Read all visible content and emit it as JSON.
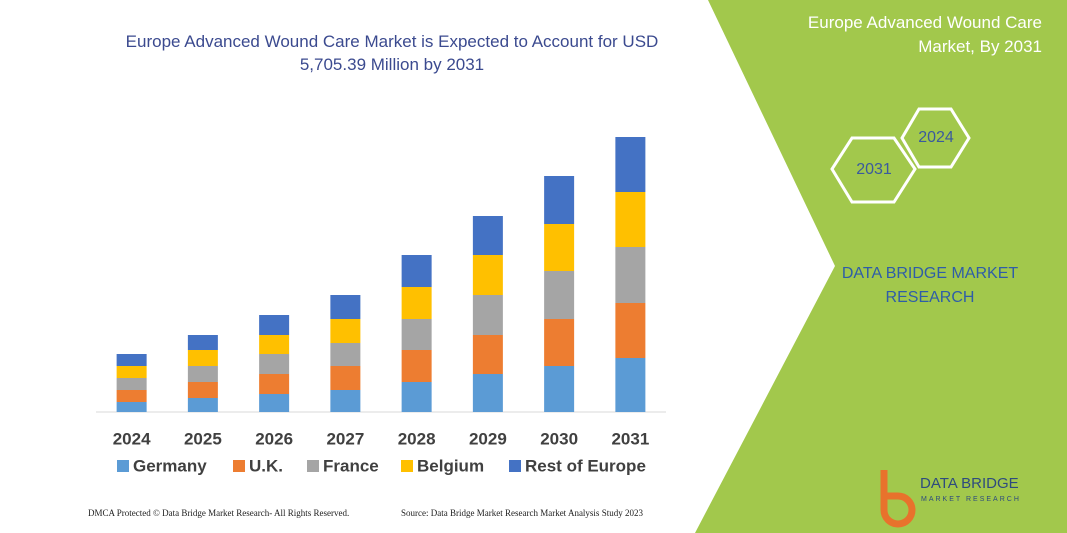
{
  "chart_data": {
    "type": "stacked-bar",
    "title": "Europe Advanced Wound Care Market is Expected to Account for USD 5,705.39 Million by 2031",
    "categories": [
      "2024",
      "2025",
      "2026",
      "2027",
      "2028",
      "2029",
      "2030",
      "2031"
    ],
    "series": [
      {
        "name": "Germany",
        "color": "#5b9bd5",
        "values": [
          10,
          14,
          18,
          22,
          30,
          38,
          46,
          54
        ]
      },
      {
        "name": "U.K.",
        "color": "#ed7d31",
        "values": [
          12,
          16,
          20,
          24,
          32,
          39,
          47,
          55
        ]
      },
      {
        "name": "France",
        "color": "#a5a5a5",
        "values": [
          12,
          16,
          20,
          23,
          31,
          40,
          48,
          56
        ]
      },
      {
        "name": "Belgium",
        "color": "#ffc000",
        "values": [
          12,
          16,
          19,
          24,
          32,
          40,
          47,
          55
        ]
      },
      {
        "name": "Rest of Europe",
        "color": "#4472c4",
        "values": [
          12,
          15,
          20,
          24,
          32,
          39,
          48,
          55
        ]
      }
    ]
  },
  "panel": {
    "title": "Europe Advanced Wound Care Market, By 2031",
    "hex_start": "2024",
    "hex_end": "2031",
    "brand": "DATA BRIDGE MARKET RESEARCH",
    "logo_name": "DATA BRIDGE",
    "logo_sub": "MARKET RESEARCH"
  },
  "footer": {
    "copyright": "DMCA Protected © Data Bridge Market Research- All Rights Reserved.",
    "source": "Source: Data Bridge Market Research Market Analysis Study 2023"
  }
}
